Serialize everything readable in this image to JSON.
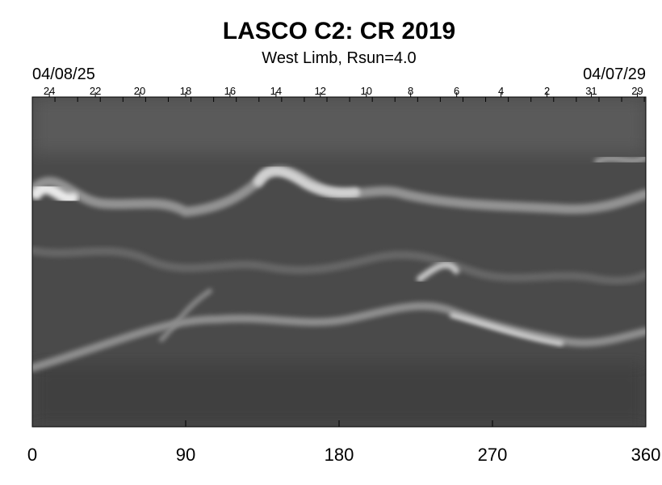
{
  "chart_data": {
    "type": "heatmap",
    "title": "LASCO C2: CR 2019",
    "subtitle": "West Limb, Rsun=4.0",
    "start_date": "04/08/25",
    "end_date": "04/07/29",
    "xlim": [
      0,
      360
    ],
    "x_ticks": [
      0,
      90,
      180,
      270,
      360
    ],
    "day_ticks": [
      {
        "label": "24",
        "x": 10
      },
      {
        "label": "22",
        "x": 37
      },
      {
        "label": "20",
        "x": 63
      },
      {
        "label": "18",
        "x": 90
      },
      {
        "label": "16",
        "x": 116
      },
      {
        "label": "14",
        "x": 143
      },
      {
        "label": "12",
        "x": 169
      },
      {
        "label": "10",
        "x": 196
      },
      {
        "label": "8",
        "x": 222
      },
      {
        "label": "6",
        "x": 249
      },
      {
        "label": "4",
        "x": 275
      },
      {
        "label": "2",
        "x": 302
      },
      {
        "label": "31",
        "x": 328
      },
      {
        "label": "29",
        "x": 355
      }
    ],
    "colormap": "grayscale",
    "colors": {
      "background": "#ffffff",
      "axis": "#000000",
      "image_base": "#4a4a4a"
    }
  }
}
